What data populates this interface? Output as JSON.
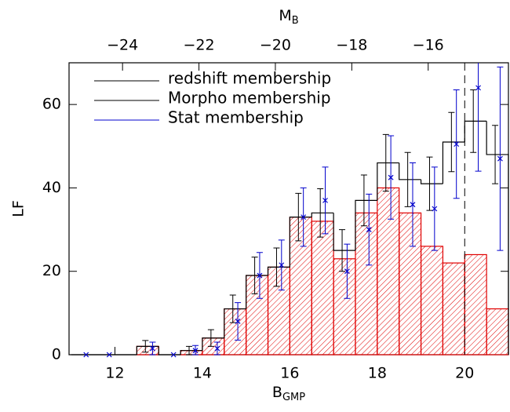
{
  "chart_data": {
    "type": "histogram",
    "x_label": {
      "main": "B",
      "sub": "GMP"
    },
    "x2_label": {
      "main": "M",
      "sub": "B"
    },
    "y_label": "LF",
    "xlim": [
      10.95,
      21
    ],
    "xticks": [
      12,
      14,
      16,
      18,
      20
    ],
    "x2lim": [
      -25.4,
      -13.9
    ],
    "x2ticks": [
      {
        "value": -24,
        "label": "−24"
      },
      {
        "value": -22,
        "label": "−22"
      },
      {
        "value": -20,
        "label": "−20"
      },
      {
        "value": -18,
        "label": "−18"
      },
      {
        "value": -16,
        "label": "−16"
      }
    ],
    "ylim": [
      0,
      70
    ],
    "yticks": [
      0,
      20,
      40,
      60
    ],
    "vline": 20,
    "bins": [
      11,
      11.5,
      12,
      12.5,
      13,
      13.5,
      14,
      14.5,
      15,
      15.5,
      16,
      16.5,
      17,
      17.5,
      18,
      18.5,
      19,
      19.5,
      20,
      20.5,
      21
    ],
    "series": [
      {
        "name": "redshift membership",
        "color": "#e00000",
        "legend_line_color": "#000000",
        "hatched": true,
        "counts": [
          0,
          0,
          0,
          2,
          0,
          1,
          4,
          11,
          19,
          21,
          33,
          32,
          23,
          34,
          40,
          34,
          26,
          22,
          24,
          11
        ]
      },
      {
        "name": "Morpho membership",
        "color": "#000000",
        "legend_line_color": "#000000",
        "hatched": false,
        "counts": [
          0,
          0,
          0,
          2,
          0,
          1,
          4,
          11,
          19,
          21,
          33,
          34,
          25,
          37,
          46,
          42,
          41,
          51,
          56,
          48
        ],
        "errors": [
          null,
          null,
          null,
          1.4,
          null,
          1,
          2,
          3.3,
          4.4,
          4.6,
          5.7,
          5.8,
          5,
          6.1,
          6.8,
          6.5,
          6.4,
          7.1,
          7.5,
          7
        ]
      },
      {
        "name": "Stat membership",
        "color": "#0000cc",
        "legend_line_color": "#0000cc",
        "x": [
          11.34,
          11.87,
          12.86,
          13.34,
          13.84,
          14.34,
          14.81,
          15.31,
          15.81,
          16.31,
          16.81,
          17.31,
          17.81,
          18.31,
          18.81,
          19.31,
          19.81,
          20.31,
          20.81
        ],
        "values": [
          0,
          0,
          1.5,
          0,
          1,
          1.5,
          8,
          19,
          21.5,
          33,
          37,
          20,
          30,
          42.5,
          36,
          35,
          50.5,
          64,
          47
        ],
        "errors": [
          0,
          0,
          1.5,
          0,
          1.2,
          1.5,
          4.5,
          5.5,
          6,
          7,
          8,
          6.5,
          8.5,
          10,
          10,
          10,
          13,
          20,
          22
        ]
      }
    ]
  }
}
